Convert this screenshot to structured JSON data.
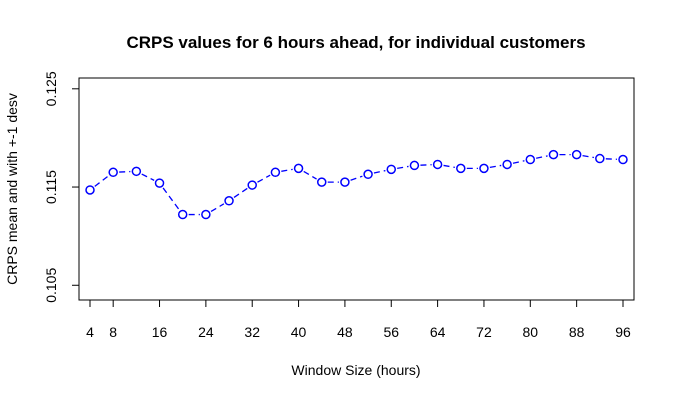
{
  "chart_data": {
    "type": "line",
    "title": "CRPS values for 6 hours ahead, for individual customers",
    "xlabel": "Window Size (hours)",
    "ylabel": "CRPS mean and with +-1 desv",
    "xlim": [
      2.1,
      97.9
    ],
    "ylim": [
      0.1035,
      0.1261
    ],
    "x_ticks": [
      4,
      8,
      16,
      24,
      32,
      40,
      48,
      56,
      64,
      72,
      80,
      88,
      96
    ],
    "y_ticks": [
      0.105,
      0.115,
      0.125
    ],
    "y_tick_labels": [
      "0.105",
      "0.115",
      "0.125"
    ],
    "grid": false,
    "series": [
      {
        "color": "#0000ff",
        "line_style": "dashed",
        "marker": "open-circle",
        "x": [
          4,
          8,
          12,
          16,
          20,
          24,
          28,
          32,
          36,
          40,
          44,
          48,
          52,
          56,
          60,
          64,
          68,
          72,
          76,
          80,
          84,
          88,
          92,
          96
        ],
        "y": [
          0.1147,
          0.1165,
          0.1166,
          0.1154,
          0.1122,
          0.1122,
          0.1136,
          0.1152,
          0.1165,
          0.1169,
          0.1155,
          0.1155,
          0.1163,
          0.1168,
          0.1172,
          0.1173,
          0.1169,
          0.1169,
          0.1173,
          0.1178,
          0.1183,
          0.1183,
          0.1179,
          0.1178
        ]
      }
    ]
  }
}
